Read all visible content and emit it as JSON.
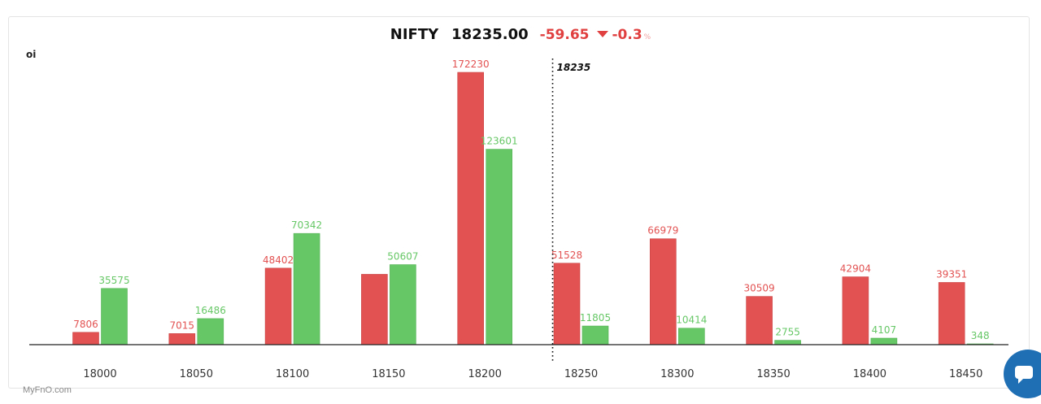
{
  "header": {
    "symbol": "NIFTY",
    "price": "18235.00",
    "change": "-59.65",
    "change_pct": "-0.3",
    "pct_sign": "%"
  },
  "watermark": "MyFnO.com",
  "icons": {
    "change_direction": "triangle-down-icon",
    "chat": "chat-bubble-icon"
  },
  "colors": {
    "red": "#e35252",
    "green": "#66c766",
    "down": "#e0403f",
    "chat": "#1f6fb5"
  },
  "chart_data": {
    "type": "bar",
    "ylabel": "oi",
    "xlabel": "",
    "categories": [
      "18000",
      "18050",
      "18100",
      "18150",
      "18200",
      "18250",
      "18300",
      "18350",
      "18400",
      "18450"
    ],
    "series": [
      {
        "color": "#e35252",
        "values": [
          7806,
          7015,
          48402,
          44500,
          172230,
          51528,
          66979,
          30509,
          42904,
          39351
        ],
        "labels": [
          "7806",
          "7015",
          "48402",
          "",
          "172230",
          "51528",
          "66979",
          "30509",
          "42904",
          "39351"
        ]
      },
      {
        "color": "#66c766",
        "values": [
          35575,
          16486,
          70342,
          50607,
          123601,
          11805,
          10414,
          2755,
          4107,
          348
        ],
        "labels": [
          "35575",
          "16486",
          "70342",
          "50607",
          "123601",
          "11805",
          "10414",
          "2755",
          "4107",
          "348"
        ]
      }
    ],
    "ylim": [
      0,
      172230
    ],
    "spot": {
      "value": 18235,
      "label": "18235"
    },
    "grid": false,
    "legend": "none"
  }
}
